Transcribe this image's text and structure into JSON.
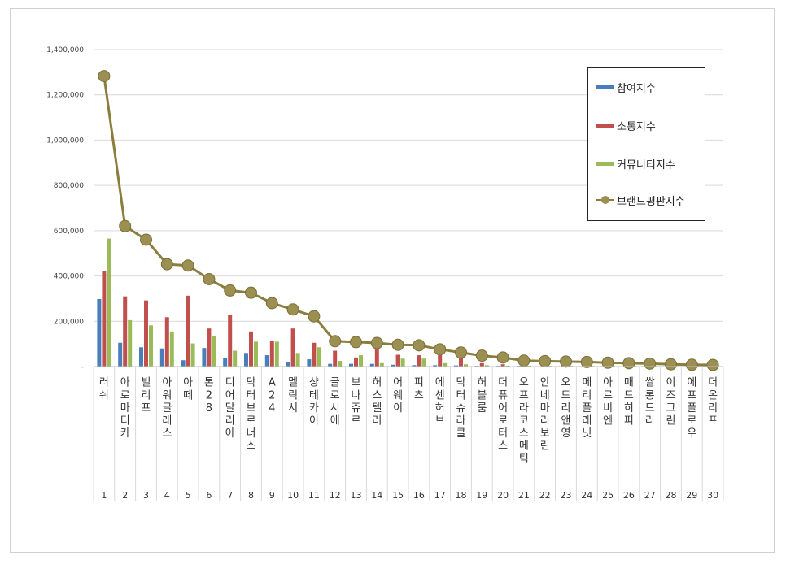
{
  "chart_data": {
    "type": "bar",
    "title": "",
    "xlabel": "",
    "ylabel": "",
    "ylim": [
      0,
      1400000
    ],
    "y_ticks": [
      "-",
      "200,000",
      "400,000",
      "600,000",
      "800,000",
      "1,000,000",
      "1,200,000",
      "1,400,000"
    ],
    "y_tick_values": [
      0,
      200000,
      400000,
      600000,
      800000,
      1000000,
      1200000,
      1400000
    ],
    "grid": true,
    "legend_position": "right",
    "ranks": [
      "1",
      "2",
      "3",
      "4",
      "5",
      "6",
      "7",
      "8",
      "9",
      "10",
      "11",
      "12",
      "13",
      "14",
      "15",
      "16",
      "17",
      "18",
      "19",
      "20",
      "21",
      "22",
      "23",
      "24",
      "25",
      "26",
      "27",
      "28",
      "29",
      "30"
    ],
    "categories": [
      "러쉬",
      "아로마티카",
      "빌리프",
      "아워글래스",
      "아떼",
      "톤28",
      "디어달리아",
      "닥터브로너스",
      "A24",
      "멜릭서",
      "샹테카이",
      "글로시에",
      "보나쥬르",
      "허스텔러",
      "어웨이",
      "피츠",
      "에센허브",
      "닥터슈라클",
      "허블룸",
      "더퓨어로터스",
      "오프라코스메틱",
      "안네마리보린",
      "오드리앤영",
      "메리플래닛",
      "아르비엔",
      "매드히피",
      "쌀롱드리",
      "이즈그린",
      "에프플로우",
      "더온리프"
    ],
    "series": [
      {
        "name": "참여지수",
        "kind": "bar",
        "color": "#4a7ebb",
        "values": [
          298000,
          105000,
          85000,
          80000,
          28000,
          82000,
          38000,
          60000,
          50000,
          20000,
          32000,
          12000,
          12000,
          12000,
          8000,
          6000,
          6000,
          5000,
          3000,
          3000,
          3000,
          2000,
          2000,
          2000,
          1500,
          1500,
          1500,
          1000,
          1000,
          1000
        ]
      },
      {
        "name": "소통지수",
        "kind": "bar",
        "color": "#c0504d",
        "values": [
          422000,
          310000,
          292000,
          218000,
          313000,
          168000,
          228000,
          155000,
          115000,
          168000,
          105000,
          70000,
          40000,
          90000,
          52000,
          50000,
          50000,
          38000,
          15000,
          10000,
          8000,
          5000,
          5000,
          5000,
          4000,
          4000,
          4000,
          3000,
          3000,
          3000
        ]
      },
      {
        "name": "커뮤니티지수",
        "kind": "bar",
        "color": "#9bbb59",
        "values": [
          565000,
          205000,
          182000,
          155000,
          102000,
          135000,
          70000,
          110000,
          110000,
          60000,
          85000,
          25000,
          50000,
          15000,
          35000,
          35000,
          15000,
          10000,
          6000,
          4000,
          4000,
          3000,
          3000,
          3000,
          3000,
          3000,
          3000,
          2000,
          2000,
          2000
        ]
      },
      {
        "name": "브랜드평판지수",
        "kind": "line",
        "color": "#948a54",
        "values": [
          1283000,
          620000,
          560000,
          452000,
          446000,
          386000,
          336000,
          326000,
          280000,
          252000,
          222000,
          112000,
          108000,
          104000,
          96000,
          94000,
          76000,
          62000,
          48000,
          40000,
          26000,
          24000,
          22000,
          20000,
          17000,
          15000,
          13000,
          10000,
          8000,
          7000
        ]
      }
    ]
  }
}
